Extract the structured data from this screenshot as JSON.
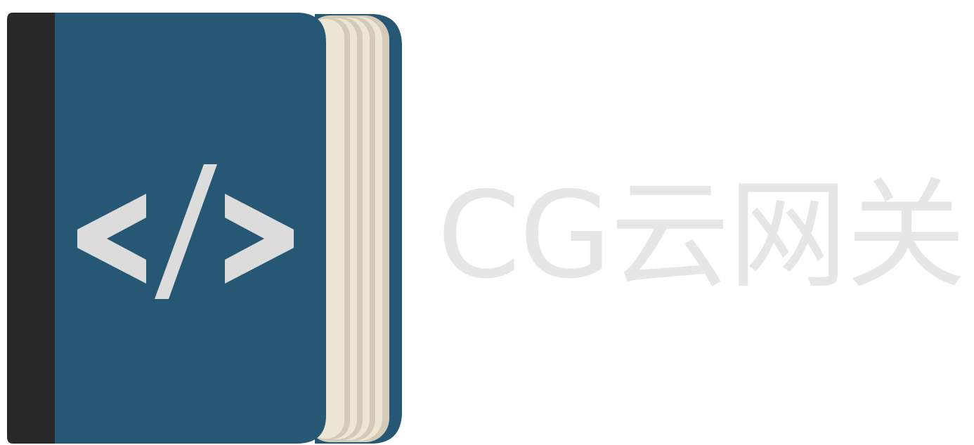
{
  "brand": {
    "name": "CG云网关"
  },
  "logo": {
    "icon": "code-book-icon",
    "glyph": "</>"
  },
  "colors": {
    "cover": "#265875",
    "spine": "#282828",
    "pages_light": "#ede6d3",
    "pages_shade": "#d3cbb8",
    "back_cover": "#1f4f6b",
    "glyph": "#dcdcdc",
    "brand_text": "#e6e6e6"
  }
}
